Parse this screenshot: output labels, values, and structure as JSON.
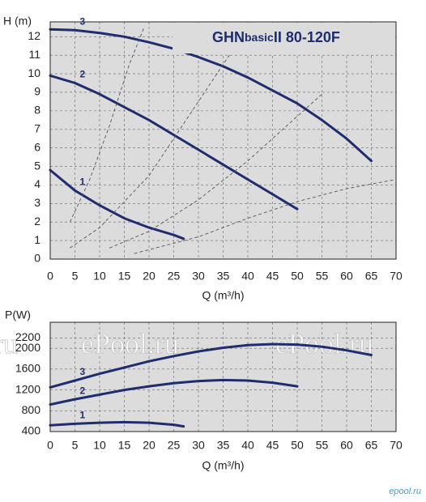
{
  "chart_data": [
    {
      "type": "line",
      "title": [
        "GHN",
        "basic",
        "II  80-120F"
      ],
      "ylabel": "H (m)",
      "xlabel": "Q (m³/h)",
      "xlim": [
        0,
        70
      ],
      "xticks": [
        0,
        5,
        10,
        15,
        20,
        25,
        30,
        35,
        40,
        45,
        50,
        55,
        60,
        65,
        70
      ],
      "ylim": [
        0,
        12.8
      ],
      "yticks": [
        0,
        1,
        2,
        3,
        4,
        5,
        6,
        7,
        8,
        9,
        10,
        11,
        12
      ],
      "grid": true,
      "series": [
        {
          "name": "3",
          "color": "#1f2d6e",
          "x": [
            0,
            5,
            10,
            15,
            20,
            25,
            30,
            35,
            40,
            45,
            50,
            55,
            60,
            65
          ],
          "values": [
            12.4,
            12.35,
            12.2,
            12.0,
            11.7,
            11.35,
            10.9,
            10.4,
            9.8,
            9.1,
            8.4,
            7.5,
            6.5,
            5.3
          ]
        },
        {
          "name": "2",
          "color": "#1f2d6e",
          "x": [
            0,
            5,
            10,
            15,
            20,
            25,
            30,
            35,
            40,
            45,
            50
          ],
          "values": [
            9.9,
            9.5,
            8.9,
            8.2,
            7.5,
            6.7,
            5.9,
            5.1,
            4.3,
            3.5,
            2.7
          ]
        },
        {
          "name": "1",
          "color": "#1f2d6e",
          "x": [
            0,
            5,
            10,
            15,
            20,
            25,
            27
          ],
          "values": [
            4.8,
            3.7,
            2.9,
            2.2,
            1.7,
            1.3,
            1.1
          ]
        },
        {
          "color": "#555555",
          "dash": true,
          "x": [
            4,
            8,
            12,
            16,
            19
          ],
          "values": [
            2,
            4.3,
            7.2,
            10.5,
            12.5
          ]
        },
        {
          "color": "#555555",
          "dash": true,
          "x": [
            4,
            10,
            20,
            30,
            37
          ],
          "values": [
            0.6,
            1.7,
            4.5,
            8.5,
            11.3
          ]
        },
        {
          "color": "#555555",
          "dash": true,
          "x": [
            12,
            20,
            30,
            40,
            50,
            55
          ],
          "values": [
            0.6,
            1.5,
            3.2,
            5.3,
            7.7,
            8.9
          ]
        },
        {
          "color": "#555555",
          "dash": true,
          "x": [
            17,
            30,
            40,
            50,
            60,
            70
          ],
          "values": [
            0.3,
            1.2,
            2.2,
            3.1,
            3.8,
            4.3
          ]
        }
      ]
    },
    {
      "type": "line",
      "ylabel": "P(W)",
      "xlabel": "Q (m³/h)",
      "xlim": [
        0,
        70
      ],
      "xticks": [
        0,
        5,
        10,
        15,
        20,
        25,
        30,
        35,
        40,
        45,
        50,
        55,
        60,
        65,
        70
      ],
      "ylim": [
        400,
        2500
      ],
      "yticks": [
        400,
        800,
        1200,
        1600,
        2000,
        2200
      ],
      "grid": true,
      "watermark": "ePool.ru",
      "watermark_edge": "ru",
      "logo": "epool.ru",
      "series": [
        {
          "name": "3",
          "color": "#1f2d6e",
          "x": [
            0,
            5,
            10,
            15,
            20,
            25,
            30,
            35,
            40,
            45,
            50,
            55,
            60,
            65
          ],
          "values": [
            1250,
            1380,
            1510,
            1630,
            1750,
            1850,
            1940,
            2010,
            2060,
            2080,
            2070,
            2030,
            1960,
            1870
          ]
        },
        {
          "name": "2",
          "color": "#1f2d6e",
          "x": [
            0,
            5,
            10,
            15,
            20,
            25,
            30,
            35,
            40,
            45,
            50
          ],
          "values": [
            920,
            1020,
            1110,
            1200,
            1270,
            1330,
            1370,
            1390,
            1380,
            1340,
            1270
          ]
        },
        {
          "name": "1",
          "color": "#1f2d6e",
          "x": [
            0,
            5,
            10,
            15,
            20,
            25,
            27
          ],
          "values": [
            520,
            550,
            570,
            580,
            570,
            530,
            500
          ]
        }
      ]
    }
  ]
}
